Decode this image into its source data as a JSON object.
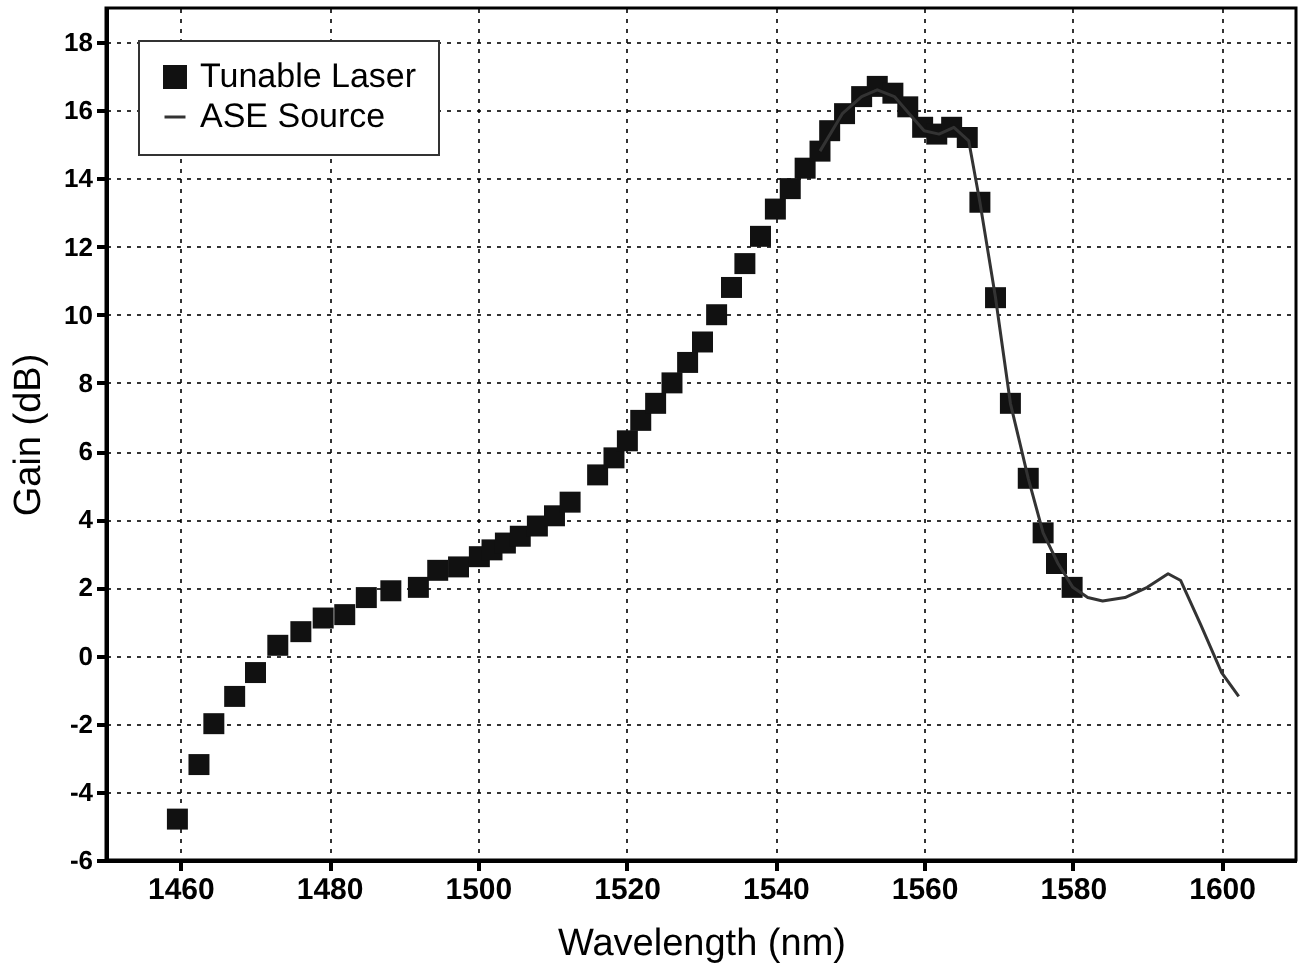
{
  "chart_data": {
    "type": "line",
    "xlabel": "Wavelength (nm)",
    "ylabel": "Gain (dB)",
    "xlim": [
      1450,
      1610
    ],
    "ylim": [
      -6,
      19
    ],
    "xticks": [
      1460,
      1480,
      1500,
      1520,
      1540,
      1560,
      1580,
      1600
    ],
    "yticks": [
      -6,
      -4,
      -2,
      0,
      2,
      4,
      6,
      8,
      10,
      12,
      14,
      16,
      18
    ],
    "grid": true,
    "legend": "top left",
    "series": [
      {
        "name": "Tunable Laser",
        "type": "scatter",
        "marker": "square",
        "color": "#111111",
        "x": [
          1459.6,
          1462.5,
          1464.5,
          1467.3,
          1470.1,
          1473.1,
          1476.2,
          1479.2,
          1482.1,
          1485,
          1488.3,
          1492,
          1494.6,
          1497.4,
          1500.2,
          1501.9,
          1503.7,
          1505.7,
          1508,
          1510.3,
          1512.4,
          1516.1,
          1518.3,
          1520.1,
          1521.9,
          1523.9,
          1526.1,
          1528.2,
          1530.2,
          1532.1,
          1534.1,
          1535.9,
          1538,
          1540,
          1542,
          1544,
          1546,
          1547.3,
          1549.3,
          1551.6,
          1553.7,
          1555.8,
          1557.8,
          1559.8,
          1561.7,
          1563.7,
          1565.8,
          1567.5,
          1569.6,
          1571.6,
          1574,
          1576,
          1577.8,
          1579.9
        ],
        "values": [
          -4.8,
          -3.2,
          -2.0,
          -1.2,
          -0.5,
          0.3,
          0.7,
          1.1,
          1.2,
          1.7,
          1.9,
          2.0,
          2.5,
          2.6,
          2.9,
          3.1,
          3.3,
          3.5,
          3.8,
          4.1,
          4.5,
          5.3,
          5.8,
          6.3,
          6.9,
          7.4,
          8.0,
          8.6,
          9.2,
          10.0,
          10.8,
          11.5,
          12.3,
          13.1,
          13.7,
          14.3,
          14.8,
          15.4,
          15.9,
          16.4,
          16.7,
          16.5,
          16.1,
          15.5,
          15.3,
          15.5,
          15.2,
          13.3,
          10.5,
          7.4,
          5.2,
          3.6,
          2.7,
          2.0
        ]
      },
      {
        "name": "ASE Source",
        "type": "line",
        "line_style": "solid",
        "color": "#333333",
        "x": [
          1546,
          1549,
          1551.6,
          1553.7,
          1556,
          1558,
          1560,
          1562,
          1564,
          1566,
          1567.5,
          1569.6,
          1571.6,
          1574,
          1576,
          1578,
          1580,
          1582,
          1584,
          1587,
          1590,
          1592.8,
          1594.5,
          1597.2,
          1600,
          1602.3
        ],
        "values": [
          14.8,
          15.9,
          16.4,
          16.6,
          16.4,
          15.9,
          15.4,
          15.3,
          15.5,
          15.1,
          13.3,
          10.5,
          7.4,
          5.2,
          3.6,
          2.7,
          2.0,
          1.7,
          1.6,
          1.7,
          2.0,
          2.4,
          2.2,
          0.9,
          -0.5,
          -1.2
        ]
      }
    ]
  }
}
